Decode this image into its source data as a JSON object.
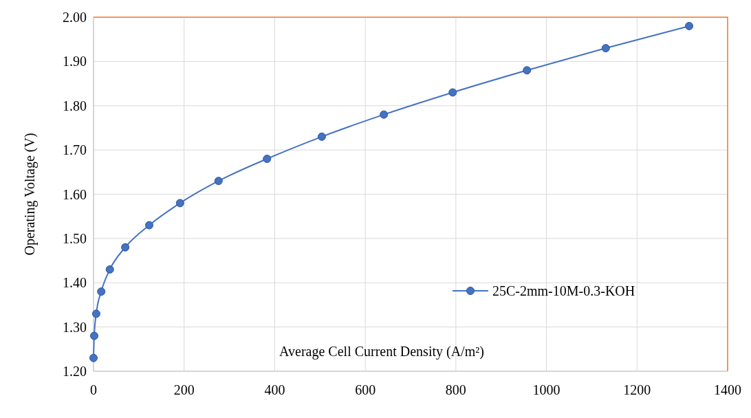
{
  "chart_data": {
    "type": "line",
    "xlabel": "Average Cell Current Density  (A/m²)",
    "ylabel": "Operating Voltage (V)",
    "x": [
      0,
      1.5,
      6,
      17,
      36,
      70,
      123,
      191,
      276,
      383,
      504,
      641,
      793,
      957,
      1131,
      1315
    ],
    "series": [
      {
        "name": "25C-2mm-10M-0.3-KOH",
        "color": "#4472c4",
        "values": [
          1.23,
          1.28,
          1.33,
          1.38,
          1.43,
          1.48,
          1.53,
          1.58,
          1.63,
          1.68,
          1.73,
          1.78,
          1.83,
          1.88,
          1.93,
          1.98
        ]
      }
    ],
    "xlim": [
      0,
      1400
    ],
    "xticks": [
      0,
      200,
      400,
      600,
      800,
      1000,
      1200,
      1400
    ],
    "ylim": [
      1.2,
      2.0
    ],
    "yticks": [
      {
        "value": 1.2,
        "label": "1.20"
      },
      {
        "value": 1.3,
        "label": "1.30"
      },
      {
        "value": 1.4,
        "label": "1.40"
      },
      {
        "value": 1.5,
        "label": "1.50"
      },
      {
        "value": 1.6,
        "label": "1.60"
      },
      {
        "value": 1.7,
        "label": "1.70"
      },
      {
        "value": 1.8,
        "label": "1.80"
      },
      {
        "value": 1.9,
        "label": "1.90"
      },
      {
        "value": 2.0,
        "label": "2.00"
      }
    ],
    "grid": true,
    "legend": "right",
    "marker": "circle",
    "line_style": "solid"
  }
}
